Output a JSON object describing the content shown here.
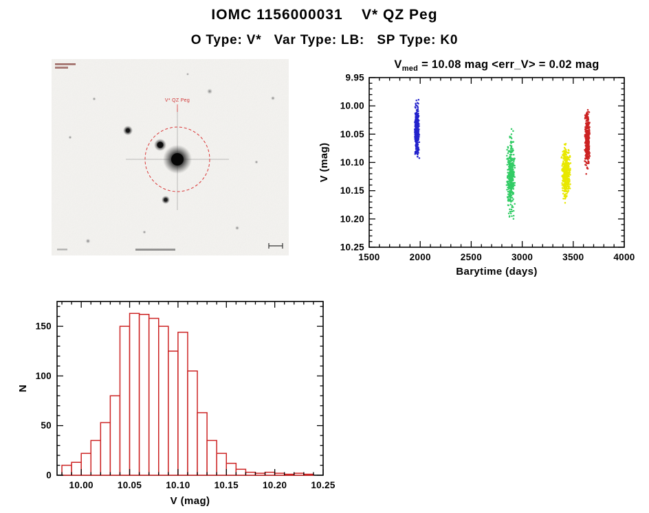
{
  "header": {
    "title": "IOMC 1156000031    V* QZ Peg",
    "subtitle": "O Type: V*   Var Type: LB:   SP Type: K0"
  },
  "finding_chart": {
    "target_label": "V* QZ Peg"
  },
  "stats": {
    "v_med_mag": 10.08,
    "err_v_mag": 0.02
  },
  "chart_data": [
    {
      "type": "scatter",
      "title": {
        "prefix": "V",
        "subscript": "med",
        "suffix": " = 10.08 mag <err_V> = 0.02 mag"
      },
      "xlabel": "Barytime (days)",
      "ylabel": "V (mag)",
      "xlim": [
        1500,
        4000
      ],
      "ylim": [
        9.95,
        10.25
      ],
      "y_axis_inverted_magnitudes": true,
      "x_major": 500,
      "x_minor": 100,
      "x_ticks": [
        1500,
        2000,
        2500,
        3000,
        3500,
        4000
      ],
      "y_ticks": [
        9.95,
        10.0,
        10.05,
        10.1,
        10.15,
        10.2,
        10.25
      ],
      "y_tick_labels": [
        "9.95",
        "10.00",
        "10.05",
        "10.10",
        "10.15",
        "10.20",
        "10.25"
      ],
      "legend": "none",
      "grid": false,
      "series": [
        {
          "name": "epoch-1-blue",
          "color": "#2222cc",
          "x_center": 1968,
          "x_spread": 24,
          "v_min": 9.983,
          "v_max": 10.103,
          "n": 330
        },
        {
          "name": "epoch-2-green",
          "color": "#33cc66",
          "x_center": 2888,
          "x_spread": 42,
          "v_min": 10.031,
          "v_max": 10.221,
          "n": 380
        },
        {
          "name": "epoch-3-yellow",
          "color": "#e8e800",
          "x_center": 3428,
          "x_spread": 46,
          "v_min": 10.053,
          "v_max": 10.182,
          "n": 380
        },
        {
          "name": "epoch-4-red",
          "color": "#cc2222",
          "x_center": 3638,
          "x_spread": 26,
          "v_min": 9.993,
          "v_max": 10.127,
          "n": 380
        }
      ]
    },
    {
      "type": "bar",
      "title": "",
      "xlabel": "V (mag)",
      "ylabel": "N",
      "xlim": [
        9.975,
        10.25
      ],
      "ylim": [
        0,
        175
      ],
      "bin_start": 9.98,
      "bin_width": 0.01,
      "bar_color": "#cc2222",
      "grid": false,
      "x_ticks": [
        10.0,
        10.05,
        10.1,
        10.15,
        10.2,
        10.25
      ],
      "x_tick_labels": [
        "10.00",
        "10.05",
        "10.10",
        "10.15",
        "10.20",
        "10.25"
      ],
      "y_ticks": [
        0,
        50,
        100,
        150
      ],
      "values": [
        10,
        13,
        22,
        35,
        53,
        80,
        150,
        163,
        162,
        158,
        150,
        125,
        144,
        105,
        63,
        35,
        22,
        12,
        6,
        3,
        2,
        3,
        2,
        1,
        2,
        1
      ]
    }
  ]
}
